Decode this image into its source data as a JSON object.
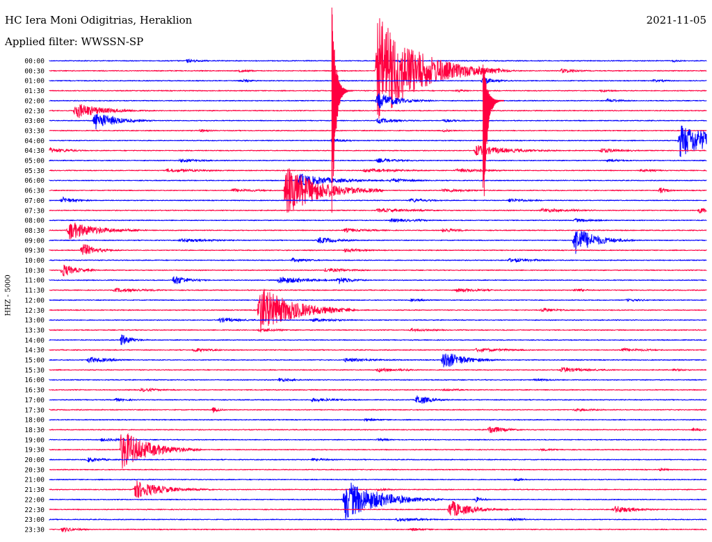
{
  "header": {
    "station": "HC Iera Moni Odigitrias, Heraklion",
    "date": "2021-11-05",
    "filter": "Applied filter: WWSSN-SP"
  },
  "chart_data": {
    "type": "line",
    "chart_kind": "helicorder seismogram",
    "ylabel": "HHZ - 5000",
    "colors": [
      "#0000ff",
      "#ff0040"
    ],
    "grid": false,
    "legend": "none",
    "minutes_per_line": 30,
    "rows": [
      {
        "label": "00:00",
        "events": [
          {
            "t": 0.21,
            "amp": 3,
            "dur": 0.02
          },
          {
            "t": 0.53,
            "amp": 2,
            "dur": 0.02
          },
          {
            "t": 0.95,
            "amp": 2,
            "dur": 0.015
          }
        ]
      },
      {
        "label": "00:30",
        "events": [
          {
            "t": 0.68,
            "amp": 4,
            "dur": 0.02
          },
          {
            "t": 0.78,
            "amp": 4,
            "dur": 0.02
          },
          {
            "t": 0.29,
            "amp": 2,
            "dur": 0.02
          },
          {
            "t": 0.5,
            "amp": 80,
            "dur": 0.06
          }
        ]
      },
      {
        "label": "01:00",
        "events": [
          {
            "t": 0.66,
            "amp": 5,
            "dur": 0.02
          },
          {
            "t": 0.29,
            "amp": 2,
            "dur": 0.02
          },
          {
            "t": 0.92,
            "amp": 2,
            "dur": 0.02
          }
        ]
      },
      {
        "label": "01:30",
        "events": [
          {
            "t": 0.62,
            "amp": 2,
            "dur": 0.02
          },
          {
            "t": 0.84,
            "amp": 2,
            "dur": 0.02
          }
        ]
      },
      {
        "label": "02:00",
        "events": [
          {
            "t": 0.5,
            "amp": 12,
            "dur": 0.03
          },
          {
            "t": 0.85,
            "amp": 3,
            "dur": 0.02
          }
        ]
      },
      {
        "label": "02:30",
        "events": [
          {
            "t": 0.04,
            "amp": 12,
            "dur": 0.04
          },
          {
            "t": 0.11,
            "amp": 3,
            "dur": 0.01
          }
        ]
      },
      {
        "label": "03:00",
        "events": [
          {
            "t": 0.07,
            "amp": 14,
            "dur": 0.03
          },
          {
            "t": 0.5,
            "amp": 4,
            "dur": 0.03
          },
          {
            "t": 0.6,
            "amp": 3,
            "dur": 0.02
          }
        ]
      },
      {
        "label": "03:30",
        "events": [
          {
            "t": 0.23,
            "amp": 2,
            "dur": 0.015
          },
          {
            "t": 0.6,
            "amp": 2,
            "dur": 0.015
          }
        ]
      },
      {
        "label": "04:00",
        "events": [
          {
            "t": 0.43,
            "amp": 3,
            "dur": 0.02
          },
          {
            "t": 0.96,
            "amp": 24,
            "dur": 0.06
          }
        ]
      },
      {
        "label": "04:30",
        "events": [
          {
            "t": 0.0,
            "amp": 4,
            "dur": 0.03
          },
          {
            "t": 0.65,
            "amp": 8,
            "dur": 0.05
          },
          {
            "t": 0.84,
            "amp": 4,
            "dur": 0.03
          }
        ]
      },
      {
        "label": "05:00",
        "events": [
          {
            "t": 0.2,
            "amp": 3,
            "dur": 0.03
          },
          {
            "t": 0.5,
            "amp": 3,
            "dur": 0.04
          },
          {
            "t": 0.85,
            "amp": 2,
            "dur": 0.03
          }
        ]
      },
      {
        "label": "05:30",
        "events": [
          {
            "t": 0.18,
            "amp": 3,
            "dur": 0.05
          },
          {
            "t": 0.48,
            "amp": 3,
            "dur": 0.06
          },
          {
            "t": 0.62,
            "amp": 3,
            "dur": 0.05
          },
          {
            "t": 0.9,
            "amp": 2,
            "dur": 0.03
          }
        ]
      },
      {
        "label": "06:00",
        "events": [
          {
            "t": 0.38,
            "amp": 10,
            "dur": 0.05
          },
          {
            "t": 0.52,
            "amp": 3,
            "dur": 0.04
          }
        ]
      },
      {
        "label": "06:30",
        "events": [
          {
            "t": 0.36,
            "amp": 36,
            "dur": 0.05
          },
          {
            "t": 0.28,
            "amp": 3,
            "dur": 0.04
          },
          {
            "t": 0.93,
            "amp": 5,
            "dur": 0.01
          },
          {
            "t": 0.6,
            "amp": 3,
            "dur": 0.04
          }
        ]
      },
      {
        "label": "07:00",
        "events": [
          {
            "t": 0.02,
            "amp": 5,
            "dur": 0.02
          },
          {
            "t": 0.55,
            "amp": 3,
            "dur": 0.03
          },
          {
            "t": 0.7,
            "amp": 3,
            "dur": 0.03
          }
        ]
      },
      {
        "label": "07:30",
        "events": [
          {
            "t": 0.5,
            "amp": 3,
            "dur": 0.06
          },
          {
            "t": 0.75,
            "amp": 3,
            "dur": 0.05
          },
          {
            "t": 0.99,
            "amp": 5,
            "dur": 0.01
          }
        ]
      },
      {
        "label": "08:00",
        "events": [
          {
            "t": 0.52,
            "amp": 3,
            "dur": 0.04
          },
          {
            "t": 0.8,
            "amp": 3,
            "dur": 0.03
          }
        ]
      },
      {
        "label": "08:30",
        "events": [
          {
            "t": 0.03,
            "amp": 14,
            "dur": 0.04
          },
          {
            "t": 0.6,
            "amp": 4,
            "dur": 0.02
          },
          {
            "t": 0.45,
            "amp": 3,
            "dur": 0.04
          }
        ]
      },
      {
        "label": "09:00",
        "events": [
          {
            "t": 0.8,
            "amp": 22,
            "dur": 0.03
          },
          {
            "t": 0.41,
            "amp": 5,
            "dur": 0.03
          },
          {
            "t": 0.2,
            "amp": 3,
            "dur": 0.05
          }
        ]
      },
      {
        "label": "09:30",
        "events": [
          {
            "t": 0.05,
            "amp": 11,
            "dur": 0.02
          },
          {
            "t": 0.45,
            "amp": 3,
            "dur": 0.03
          }
        ]
      },
      {
        "label": "10:00",
        "events": [
          {
            "t": 0.37,
            "amp": 3,
            "dur": 0.03
          },
          {
            "t": 0.7,
            "amp": 3,
            "dur": 0.04
          }
        ]
      },
      {
        "label": "10:30",
        "events": [
          {
            "t": 0.02,
            "amp": 10,
            "dur": 0.02
          },
          {
            "t": 0.42,
            "amp": 3,
            "dur": 0.04
          }
        ]
      },
      {
        "label": "11:00",
        "events": [
          {
            "t": 0.19,
            "amp": 8,
            "dur": 0.02
          },
          {
            "t": 0.35,
            "amp": 6,
            "dur": 0.04
          },
          {
            "t": 0.44,
            "amp": 6,
            "dur": 0.02
          }
        ]
      },
      {
        "label": "11:30",
        "events": [
          {
            "t": 0.1,
            "amp": 3,
            "dur": 0.05
          },
          {
            "t": 0.62,
            "amp": 3,
            "dur": 0.04
          },
          {
            "t": 0.8,
            "amp": 2,
            "dur": 0.02
          }
        ]
      },
      {
        "label": "12:00",
        "events": [
          {
            "t": 0.55,
            "amp": 2,
            "dur": 0.03
          },
          {
            "t": 0.88,
            "amp": 2,
            "dur": 0.03
          }
        ]
      },
      {
        "label": "12:30",
        "events": [
          {
            "t": 0.32,
            "amp": 36,
            "dur": 0.05
          },
          {
            "t": 0.75,
            "amp": 3,
            "dur": 0.03
          }
        ]
      },
      {
        "label": "13:00",
        "events": [
          {
            "t": 0.26,
            "amp": 4,
            "dur": 0.03
          },
          {
            "t": 0.4,
            "amp": 3,
            "dur": 0.04
          }
        ]
      },
      {
        "label": "13:30",
        "events": [
          {
            "t": 0.32,
            "amp": 3,
            "dur": 0.03
          },
          {
            "t": 0.55,
            "amp": 2,
            "dur": 0.04
          }
        ]
      },
      {
        "label": "14:00",
        "events": [
          {
            "t": 0.11,
            "amp": 9,
            "dur": 0.015
          }
        ]
      },
      {
        "label": "14:30",
        "events": [
          {
            "t": 0.22,
            "amp": 3,
            "dur": 0.03
          },
          {
            "t": 0.65,
            "amp": 3,
            "dur": 0.05
          },
          {
            "t": 0.87,
            "amp": 3,
            "dur": 0.04
          }
        ]
      },
      {
        "label": "15:00",
        "events": [
          {
            "t": 0.06,
            "amp": 5,
            "dur": 0.03
          },
          {
            "t": 0.6,
            "amp": 14,
            "dur": 0.03
          },
          {
            "t": 0.45,
            "amp": 3,
            "dur": 0.05
          }
        ]
      },
      {
        "label": "15:30",
        "events": [
          {
            "t": 0.78,
            "amp": 4,
            "dur": 0.04
          },
          {
            "t": 0.5,
            "amp": 3,
            "dur": 0.04
          },
          {
            "t": 0.95,
            "amp": 2,
            "dur": 0.02
          }
        ]
      },
      {
        "label": "16:00",
        "events": [
          {
            "t": 0.35,
            "amp": 3,
            "dur": 0.02
          },
          {
            "t": 0.74,
            "amp": 2,
            "dur": 0.03
          }
        ]
      },
      {
        "label": "16:30",
        "events": [
          {
            "t": 0.14,
            "amp": 3,
            "dur": 0.03
          },
          {
            "t": 0.6,
            "amp": 2,
            "dur": 0.03
          }
        ]
      },
      {
        "label": "17:00",
        "events": [
          {
            "t": 0.56,
            "amp": 8,
            "dur": 0.02
          },
          {
            "t": 0.1,
            "amp": 3,
            "dur": 0.02
          },
          {
            "t": 0.4,
            "amp": 3,
            "dur": 0.04
          }
        ]
      },
      {
        "label": "17:30",
        "events": [
          {
            "t": 0.25,
            "amp": 4,
            "dur": 0.01
          },
          {
            "t": 0.8,
            "amp": 2,
            "dur": 0.04
          }
        ]
      },
      {
        "label": "18:00",
        "events": [
          {
            "t": 0.48,
            "amp": 2,
            "dur": 0.03
          }
        ]
      },
      {
        "label": "18:30",
        "events": [
          {
            "t": 0.67,
            "amp": 7,
            "dur": 0.02
          },
          {
            "t": 0.98,
            "amp": 3,
            "dur": 0.01
          }
        ]
      },
      {
        "label": "19:00",
        "events": [
          {
            "t": 0.08,
            "amp": 3,
            "dur": 0.03
          },
          {
            "t": 0.5,
            "amp": 2,
            "dur": 0.02
          }
        ]
      },
      {
        "label": "19:30",
        "events": [
          {
            "t": 0.11,
            "amp": 30,
            "dur": 0.04
          },
          {
            "t": 0.75,
            "amp": 2,
            "dur": 0.03
          }
        ]
      },
      {
        "label": "20:00",
        "events": [
          {
            "t": 0.06,
            "amp": 4,
            "dur": 0.02
          },
          {
            "t": 0.4,
            "amp": 2,
            "dur": 0.03
          }
        ]
      },
      {
        "label": "20:30",
        "events": [
          {
            "t": 0.93,
            "amp": 3,
            "dur": 0.01
          }
        ]
      },
      {
        "label": "21:00",
        "events": [
          {
            "t": 0.71,
            "amp": 3,
            "dur": 0.01
          }
        ]
      },
      {
        "label": "21:30",
        "events": [
          {
            "t": 0.13,
            "amp": 14,
            "dur": 0.04
          },
          {
            "t": 0.5,
            "amp": 2,
            "dur": 0.02
          }
        ]
      },
      {
        "label": "22:00",
        "events": [
          {
            "t": 0.45,
            "amp": 30,
            "dur": 0.05
          },
          {
            "t": 0.65,
            "amp": 4,
            "dur": 0.01
          }
        ]
      },
      {
        "label": "22:30",
        "events": [
          {
            "t": 0.61,
            "amp": 14,
            "dur": 0.03
          },
          {
            "t": 0.86,
            "amp": 6,
            "dur": 0.03
          }
        ]
      },
      {
        "label": "23:00",
        "events": [
          {
            "t": 0.53,
            "amp": 3,
            "dur": 0.04
          },
          {
            "t": 0.7,
            "amp": 2,
            "dur": 0.03
          }
        ]
      },
      {
        "label": "23:30",
        "events": [
          {
            "t": 0.02,
            "amp": 4,
            "dur": 0.02
          },
          {
            "t": 0.55,
            "amp": 2,
            "dur": 0.03
          }
        ]
      }
    ],
    "big_events": [
      {
        "row": "01:30",
        "t": 0.43,
        "up": 130,
        "down": 210,
        "color_index": 1
      },
      {
        "row": "02:00",
        "t": 0.66,
        "up": 70,
        "down": 200,
        "color_index": 1
      }
    ]
  }
}
